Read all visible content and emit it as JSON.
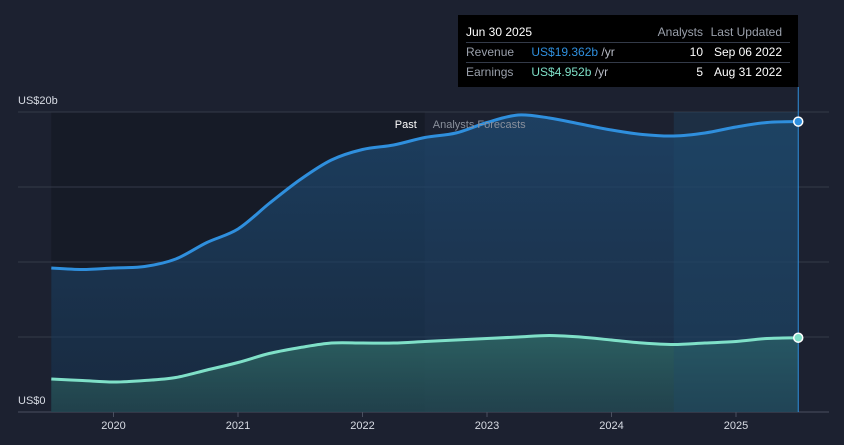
{
  "chart_data": {
    "type": "area",
    "y_unit_label_top": "US$20b",
    "y_unit_label_bottom": "US$0",
    "ylim": [
      0,
      20
    ],
    "xlim": [
      2019.5,
      2025.75
    ],
    "x_ticks": [
      {
        "value": 2020,
        "label": "2020"
      },
      {
        "value": 2021,
        "label": "2021"
      },
      {
        "value": 2022,
        "label": "2022"
      },
      {
        "value": 2023,
        "label": "2023"
      },
      {
        "value": 2024,
        "label": "2024"
      },
      {
        "value": 2025,
        "label": "2025"
      }
    ],
    "y_gridlines": [
      0,
      5,
      10,
      15,
      20
    ],
    "past_label": "Past",
    "forecast_label": "Analysts Forecasts",
    "forecast_start": 2022.5,
    "highlight_start": 2024.5,
    "series": [
      {
        "name": "Revenue",
        "color": "#2f8fdd",
        "x": [
          2019.5,
          2019.75,
          2020.0,
          2020.25,
          2020.5,
          2020.75,
          2021.0,
          2021.25,
          2021.5,
          2021.75,
          2022.0,
          2022.25,
          2022.5,
          2022.75,
          2023.0,
          2023.25,
          2023.5,
          2023.75,
          2024.0,
          2024.25,
          2024.5,
          2024.75,
          2025.0,
          2025.25,
          2025.5
        ],
        "values": [
          9.6,
          9.5,
          9.6,
          9.7,
          10.2,
          11.3,
          12.2,
          13.9,
          15.5,
          16.8,
          17.5,
          17.8,
          18.3,
          18.6,
          19.3,
          19.8,
          19.6,
          19.2,
          18.8,
          18.5,
          18.4,
          18.6,
          19.0,
          19.3,
          19.362
        ]
      },
      {
        "name": "Earnings",
        "color": "#7fe0c8",
        "x": [
          2019.5,
          2019.75,
          2020.0,
          2020.25,
          2020.5,
          2020.75,
          2021.0,
          2021.25,
          2021.5,
          2021.75,
          2022.0,
          2022.25,
          2022.5,
          2022.75,
          2023.0,
          2023.25,
          2023.5,
          2023.75,
          2024.0,
          2024.25,
          2024.5,
          2024.75,
          2025.0,
          2025.25,
          2025.5
        ],
        "values": [
          2.2,
          2.1,
          2.0,
          2.1,
          2.3,
          2.8,
          3.3,
          3.9,
          4.3,
          4.6,
          4.6,
          4.6,
          4.7,
          4.8,
          4.9,
          5.0,
          5.1,
          5.0,
          4.8,
          4.6,
          4.5,
          4.6,
          4.7,
          4.9,
          4.952
        ]
      }
    ]
  },
  "tooltip": {
    "date": "Jun 30 2025",
    "header_analysts": "Analysts",
    "header_updated": "Last Updated",
    "rows": [
      {
        "label": "Revenue",
        "value": "US$19.362b",
        "unit": "/yr",
        "analysts": "10",
        "updated": "Sep 06 2022"
      },
      {
        "label": "Earnings",
        "value": "US$4.952b",
        "unit": "/yr",
        "analysts": "5",
        "updated": "Aug 31 2022"
      }
    ]
  }
}
